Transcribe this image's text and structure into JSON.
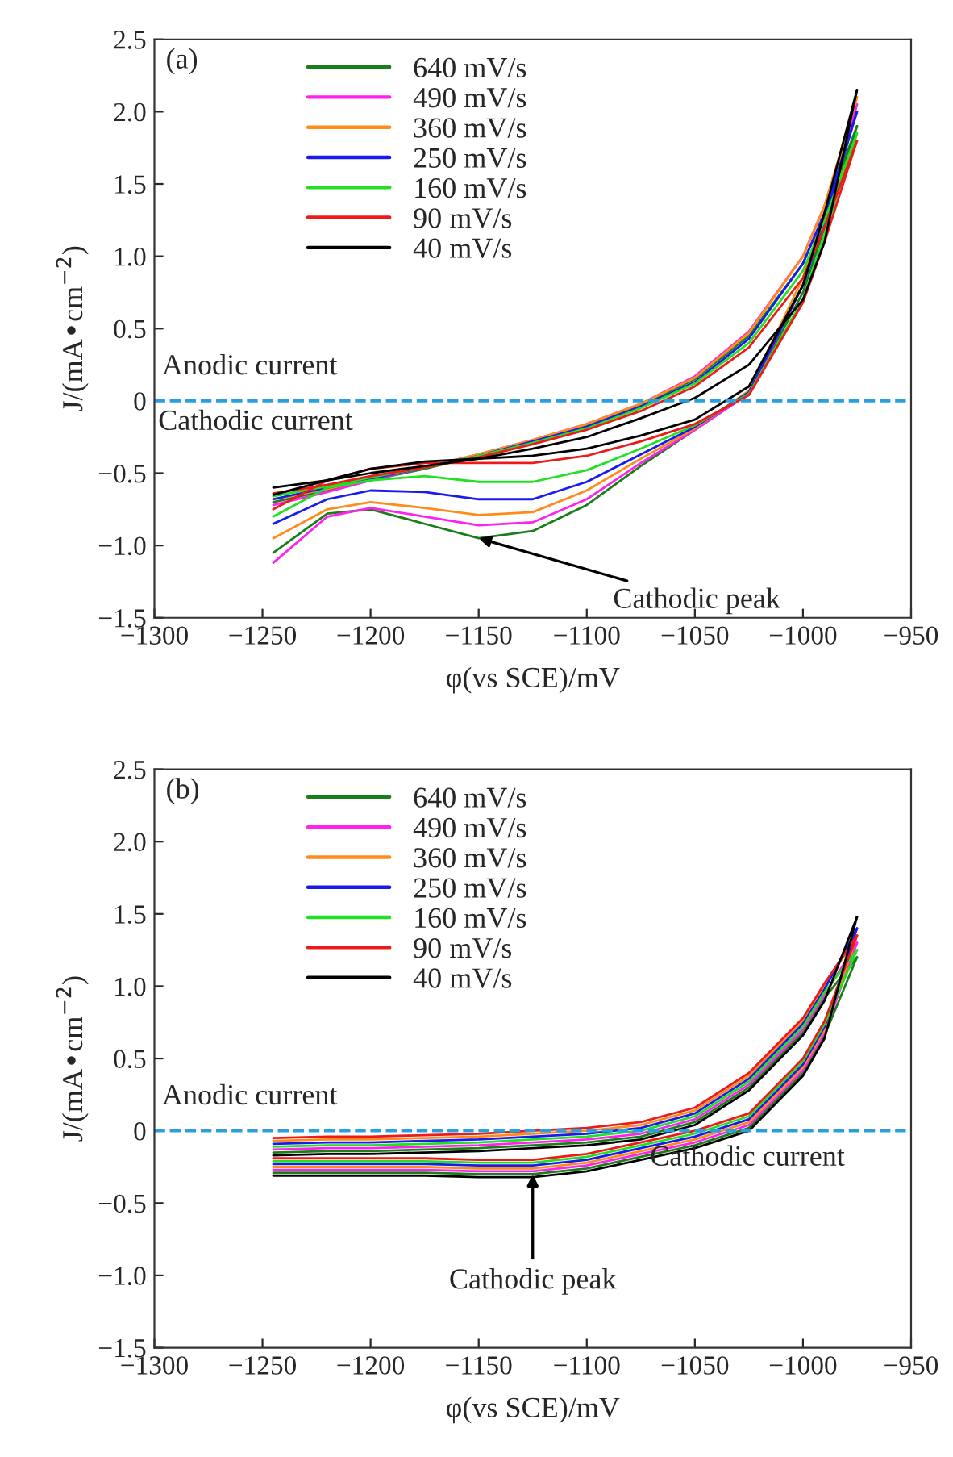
{
  "chart_data": [
    {
      "type": "line",
      "xlabel": "φ(vs SCE)/mV",
      "ylabel": "J/(mA•cm$^{−2}$)",
      "xlim": [
        -1300,
        -950
      ],
      "ylim": [
        -1.5,
        2.5
      ],
      "xticks": [
        {
          "value": -1300,
          "label": "−1300"
        },
        {
          "value": -1250,
          "label": "−1250"
        },
        {
          "value": -1200,
          "label": "−1200"
        },
        {
          "value": -1150,
          "label": "−1150"
        },
        {
          "value": -1100,
          "label": "−1100"
        },
        {
          "value": -1050,
          "label": "−1050"
        },
        {
          "value": -1000,
          "label": "−1000"
        },
        {
          "value": -950,
          "label": "−950"
        }
      ],
      "yticks": [
        {
          "value": -1.5,
          "label": "−1.5"
        },
        {
          "value": -1.0,
          "label": "−1.0"
        },
        {
          "value": -0.5,
          "label": "−0.5"
        },
        0,
        0.5,
        {
          "value": 1,
          "label": "1.0"
        },
        1.5,
        {
          "value": 2,
          "label": "2.0"
        },
        2.5
      ],
      "legend": "top left",
      "grid": false,
      "line_style": "solid",
      "marker": "none",
      "ref_lines": [
        {
          "axis": "y",
          "value": 0,
          "color": "#2a9fdf",
          "line_style": "dashed"
        }
      ],
      "annotations": [
        "(a)",
        "Anodic current",
        "Cathodic current",
        {
          "text": "Cathodic peak",
          "x": -1150,
          "y": -0.95
        }
      ],
      "x": [
        -1245,
        -1220,
        -1200,
        -1175,
        -1150,
        -1125,
        -1100,
        -1075,
        -1050,
        -1025,
        -1000,
        -990,
        -975
      ],
      "series": [
        {
          "name": "640 mV/s",
          "color": "#1a7f1a",
          "values": [
            -0.7,
            -0.62,
            -0.55,
            -0.47,
            -0.38,
            -0.28,
            -0.17,
            -0.03,
            0.15,
            0.45,
            0.95,
            1.3,
            1.9
          ]
        },
        {
          "color": "#1a7f1a",
          "values": [
            -1.05,
            -0.78,
            -0.75,
            -0.85,
            -0.95,
            -0.9,
            -0.72,
            -0.45,
            -0.2,
            0.05,
            0.75,
            1.2,
            1.9
          ]
        },
        {
          "name": "490 mV/s",
          "color": "#ff22ee",
          "values": [
            -0.72,
            -0.63,
            -0.55,
            -0.46,
            -0.37,
            -0.27,
            -0.16,
            -0.02,
            0.17,
            0.48,
            1.0,
            1.35,
            2.05
          ]
        },
        {
          "color": "#ff22ee",
          "values": [
            -1.12,
            -0.8,
            -0.74,
            -0.8,
            -0.86,
            -0.84,
            -0.68,
            -0.43,
            -0.2,
            0.05,
            0.8,
            1.25,
            2.05
          ]
        },
        {
          "name": "360 mV/s",
          "color": "#ff8c1a",
          "values": [
            -0.68,
            -0.61,
            -0.54,
            -0.46,
            -0.37,
            -0.27,
            -0.16,
            -0.02,
            0.16,
            0.47,
            1.0,
            1.35,
            2.1
          ]
        },
        {
          "color": "#ff8c1a",
          "values": [
            -0.95,
            -0.75,
            -0.7,
            -0.74,
            -0.79,
            -0.77,
            -0.62,
            -0.4,
            -0.19,
            0.07,
            0.85,
            1.3,
            2.1
          ]
        },
        {
          "name": "250 mV/s",
          "color": "#1a1aee",
          "values": [
            -0.68,
            -0.6,
            -0.54,
            -0.46,
            -0.38,
            -0.28,
            -0.18,
            -0.04,
            0.13,
            0.43,
            0.95,
            1.3,
            2.0
          ]
        },
        {
          "color": "#1a1aee",
          "values": [
            -0.85,
            -0.68,
            -0.62,
            -0.63,
            -0.68,
            -0.68,
            -0.56,
            -0.37,
            -0.18,
            0.06,
            0.8,
            1.25,
            2.0
          ]
        },
        {
          "name": "160 mV/s",
          "color": "#22e022",
          "values": [
            -0.66,
            -0.59,
            -0.53,
            -0.46,
            -0.38,
            -0.29,
            -0.19,
            -0.05,
            0.12,
            0.4,
            0.9,
            1.25,
            1.85
          ]
        },
        {
          "color": "#22e022",
          "values": [
            -0.8,
            -0.6,
            -0.55,
            -0.52,
            -0.56,
            -0.56,
            -0.48,
            -0.33,
            -0.17,
            0.05,
            0.7,
            1.15,
            1.85
          ]
        },
        {
          "name": "90 mV/s",
          "color": "#ee1a1a",
          "values": [
            -0.64,
            -0.58,
            -0.52,
            -0.46,
            -0.39,
            -0.3,
            -0.2,
            -0.07,
            0.1,
            0.37,
            0.85,
            1.2,
            1.8
          ]
        },
        {
          "color": "#ee1a1a",
          "values": [
            -0.75,
            -0.55,
            -0.47,
            -0.43,
            -0.43,
            -0.43,
            -0.38,
            -0.28,
            -0.16,
            0.04,
            0.68,
            1.1,
            1.8
          ]
        },
        {
          "name": "40 mV/s",
          "color": "#000000",
          "values": [
            -0.6,
            -0.55,
            -0.5,
            -0.45,
            -0.4,
            -0.33,
            -0.25,
            -0.12,
            0.02,
            0.25,
            0.7,
            1.1,
            2.15
          ]
        },
        {
          "color": "#000000",
          "values": [
            -0.65,
            -0.55,
            -0.47,
            -0.42,
            -0.4,
            -0.38,
            -0.33,
            -0.24,
            -0.13,
            0.1,
            0.8,
            1.3,
            2.15
          ]
        }
      ]
    },
    {
      "type": "line",
      "xlabel": "φ(vs SCE)/mV",
      "ylabel": "J/(mA•cm$^{−2}$)",
      "xlim": [
        -1300,
        -950
      ],
      "ylim": [
        -1.5,
        2.5
      ],
      "xticks": [
        {
          "value": -1300,
          "label": "−1300"
        },
        {
          "value": -1250,
          "label": "−1250"
        },
        {
          "value": -1200,
          "label": "−1200"
        },
        {
          "value": -1150,
          "label": "−1150"
        },
        {
          "value": -1100,
          "label": "−1100"
        },
        {
          "value": -1050,
          "label": "−1050"
        },
        {
          "value": -1000,
          "label": "−1000"
        },
        {
          "value": -950,
          "label": "−950"
        }
      ],
      "yticks": [
        {
          "value": -1.5,
          "label": "−1.5"
        },
        {
          "value": -1.0,
          "label": "−1.0"
        },
        {
          "value": -0.5,
          "label": "−0.5"
        },
        0,
        0.5,
        {
          "value": 1,
          "label": "1.0"
        },
        1.5,
        {
          "value": 2,
          "label": "2.0"
        },
        2.5
      ],
      "legend": "top left",
      "grid": false,
      "line_style": "solid",
      "marker": "none",
      "ref_lines": [
        {
          "axis": "y",
          "value": 0,
          "color": "#2a9fdf",
          "line_style": "dashed"
        }
      ],
      "annotations": [
        "(b)",
        "Anodic current",
        "Cathodic current",
        {
          "text": "Cathodic peak",
          "x": -1125,
          "y": -0.3
        }
      ],
      "x": [
        -1245,
        -1220,
        -1200,
        -1175,
        -1150,
        -1125,
        -1100,
        -1075,
        -1050,
        -1025,
        -1000,
        -990,
        -975
      ],
      "series": [
        {
          "name": "640 mV/s",
          "color": "#1a7f1a",
          "values": [
            -0.15,
            -0.14,
            -0.14,
            -0.13,
            -0.12,
            -0.1,
            -0.08,
            -0.04,
            0.06,
            0.3,
            0.68,
            0.92,
            1.2
          ]
        },
        {
          "color": "#1a7f1a",
          "values": [
            -0.29,
            -0.29,
            -0.29,
            -0.29,
            -0.3,
            -0.3,
            -0.26,
            -0.18,
            -0.1,
            0.02,
            0.4,
            0.66,
            1.2
          ]
        },
        {
          "name": "490 mV/s",
          "color": "#ff22ee",
          "values": [
            -0.13,
            -0.12,
            -0.12,
            -0.11,
            -0.1,
            -0.08,
            -0.06,
            -0.02,
            0.08,
            0.32,
            0.7,
            0.94,
            1.3
          ]
        },
        {
          "color": "#ff22ee",
          "values": [
            -0.27,
            -0.27,
            -0.27,
            -0.27,
            -0.28,
            -0.28,
            -0.24,
            -0.16,
            -0.08,
            0.04,
            0.42,
            0.68,
            1.3
          ]
        },
        {
          "name": "360 mV/s",
          "color": "#ff8c1a",
          "values": [
            -0.07,
            -0.06,
            -0.06,
            -0.05,
            -0.04,
            -0.02,
            0.0,
            0.04,
            0.14,
            0.38,
            0.76,
            1.0,
            1.35
          ]
        },
        {
          "color": "#ff8c1a",
          "values": [
            -0.25,
            -0.25,
            -0.25,
            -0.25,
            -0.26,
            -0.26,
            -0.22,
            -0.14,
            -0.06,
            0.06,
            0.44,
            0.7,
            1.35
          ]
        },
        {
          "name": "250 mV/s",
          "color": "#1a1aee",
          "values": [
            -0.09,
            -0.08,
            -0.08,
            -0.07,
            -0.06,
            -0.04,
            -0.02,
            0.02,
            0.12,
            0.36,
            0.74,
            0.98,
            1.4
          ]
        },
        {
          "color": "#1a1aee",
          "values": [
            -0.23,
            -0.23,
            -0.23,
            -0.23,
            -0.24,
            -0.24,
            -0.2,
            -0.12,
            -0.04,
            0.08,
            0.46,
            0.72,
            1.4
          ]
        },
        {
          "name": "160 mV/s",
          "color": "#22e022",
          "values": [
            -0.11,
            -0.1,
            -0.1,
            -0.09,
            -0.08,
            -0.06,
            -0.04,
            0.0,
            0.1,
            0.34,
            0.72,
            0.96,
            1.25
          ]
        },
        {
          "color": "#22e022",
          "values": [
            -0.21,
            -0.21,
            -0.21,
            -0.21,
            -0.22,
            -0.22,
            -0.18,
            -0.1,
            -0.02,
            0.1,
            0.48,
            0.74,
            1.25
          ]
        },
        {
          "name": "90 mV/s",
          "color": "#ee1a1a",
          "values": [
            -0.05,
            -0.04,
            -0.04,
            -0.03,
            -0.02,
            0.0,
            0.02,
            0.06,
            0.16,
            0.4,
            0.78,
            1.02,
            1.35
          ]
        },
        {
          "color": "#ee1a1a",
          "values": [
            -0.19,
            -0.19,
            -0.19,
            -0.19,
            -0.2,
            -0.2,
            -0.16,
            -0.08,
            0.0,
            0.12,
            0.5,
            0.76,
            1.35
          ]
        },
        {
          "name": "40 mV/s",
          "color": "#000000",
          "values": [
            -0.17,
            -0.16,
            -0.16,
            -0.15,
            -0.14,
            -0.12,
            -0.1,
            -0.06,
            0.04,
            0.28,
            0.66,
            0.9,
            1.48
          ]
        },
        {
          "color": "#000000",
          "values": [
            -0.31,
            -0.31,
            -0.31,
            -0.31,
            -0.32,
            -0.32,
            -0.28,
            -0.2,
            -0.12,
            0.0,
            0.38,
            0.64,
            1.48
          ]
        }
      ]
    }
  ]
}
